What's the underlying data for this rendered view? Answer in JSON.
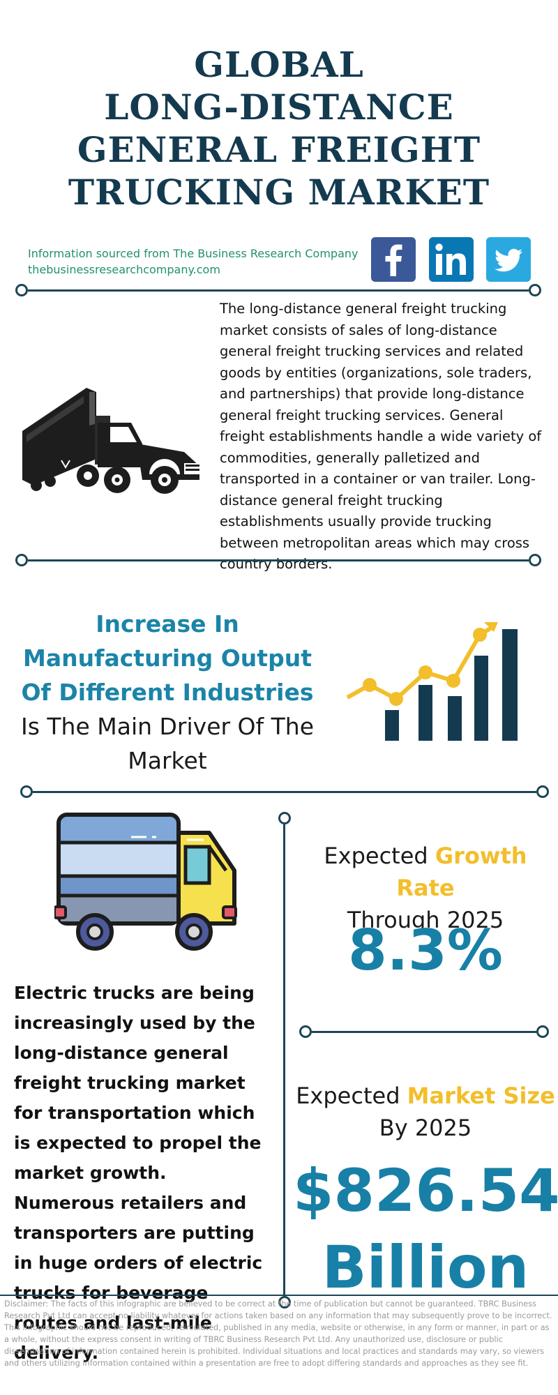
{
  "header": {
    "title_lines": [
      "GLOBAL",
      "LONG-DISTANCE",
      "GENERAL FREIGHT",
      "TRUCKING MARKET"
    ]
  },
  "source": {
    "line1": "Information sourced from The Business Research Company",
    "line2": "thebusinessresearchcompany.com"
  },
  "social": {
    "icons": [
      "facebook-icon",
      "linkedin-icon",
      "twitter-icon"
    ],
    "colors": {
      "facebook": "#3b5998",
      "linkedin": "#0a77b5",
      "twitter": "#2aa9e0"
    }
  },
  "intro": {
    "text": "The long-distance general freight trucking market consists of sales of long-distance general freight trucking services and related goods by entities (organizations, sole traders, and partnerships) that provide long-distance general freight trucking services. General freight establishments handle a wide variety of commodities, generally palletized and transported in a container or van trailer. Long-distance general freight trucking establishments usually provide trucking between metropolitan areas which may cross country borders."
  },
  "driver": {
    "highlight": "Increase In Manufacturing Output Of Different Industries",
    "rest": " Is The Main Driver Of The Market"
  },
  "growth": {
    "label_prefix": "Expected ",
    "label_accent": "Growth Rate",
    "label_suffix": "Through 2025",
    "value": "8.3%"
  },
  "market_size": {
    "label_prefix": "Expected ",
    "label_accent": "Market Size",
    "label_suffix": "By 2025",
    "value_line1": "$826.54",
    "value_line2": "Billion"
  },
  "electric": {
    "text": "Electric trucks are being increasingly used by the long-distance general freight trucking market for transportation which is expected to propel the market growth. Numerous retailers and transporters are putting in huge orders of electric trucks for beverage routes and last-mile delivery."
  },
  "disclaimer": {
    "text": "Disclaimer: The facts of this infographic are believed to be correct at the time of publication but cannot be guaranteed. TBRC Business Research Pvt Ltd can accept no liability whatever for actions taken based on any information that may subsequently prove to be incorrect. This infographic should not be reproduced, reirculated, published in any media, website or otherwise, in any form or manner, in part or as a whole, without the express consent in writing of TBRC Business Research Pvt Ltd. Any unauthorized use, disclosure or public dissemination of information contained herein is prohibited. Individual situations and local practices and standards may vary, so viewers and others utilizing information contained within a presentation are free to adopt differing standards and approaches as they see fit."
  },
  "colors": {
    "navy": "#143a4f",
    "blue": "#1880a6",
    "yellow": "#f2be2a",
    "green": "#1f9170"
  }
}
